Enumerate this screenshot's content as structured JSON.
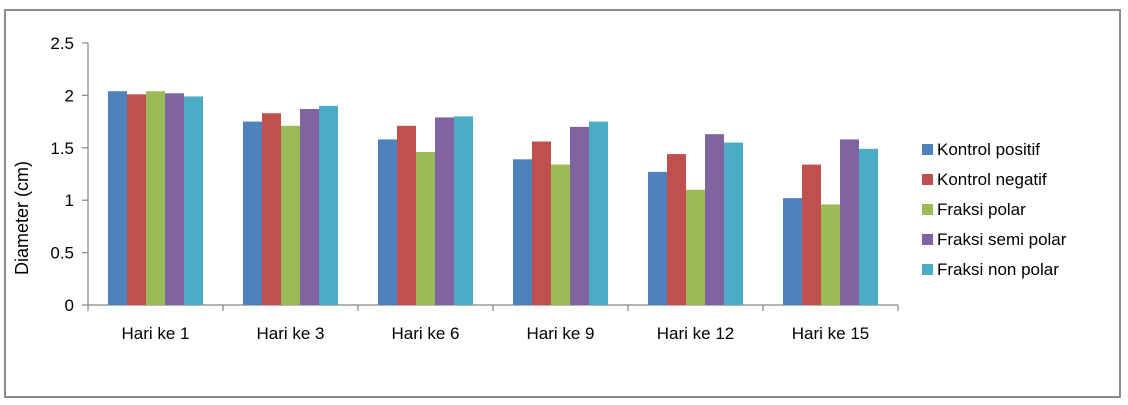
{
  "chart_data": {
    "type": "bar",
    "title": "",
    "xlabel": "",
    "ylabel": "Diameter (cm)",
    "ylim": [
      0,
      2.5
    ],
    "yticks": [
      "0",
      "0.5",
      "1",
      "1.5",
      "2",
      "2.5"
    ],
    "grid": false,
    "legend_position": "right",
    "categories": [
      "Hari ke 1",
      "Hari ke 3",
      "Hari ke 6",
      "Hari ke 9",
      "Hari ke 12",
      "Hari ke 15"
    ],
    "series": [
      {
        "name": "Kontrol positif",
        "color": "#4f81bd",
        "values": [
          2.04,
          1.75,
          1.58,
          1.39,
          1.27,
          1.02
        ]
      },
      {
        "name": "Kontrol negatif",
        "color": "#c0504d",
        "values": [
          2.01,
          1.83,
          1.71,
          1.56,
          1.44,
          1.34
        ]
      },
      {
        "name": "Fraksi polar",
        "color": "#9bbb59",
        "values": [
          2.04,
          1.71,
          1.46,
          1.34,
          1.1,
          0.96
        ]
      },
      {
        "name": "Fraksi semi polar",
        "color": "#8064a2",
        "values": [
          2.02,
          1.87,
          1.79,
          1.7,
          1.63,
          1.58
        ]
      },
      {
        "name": "Fraksi non polar",
        "color": "#4bacc6",
        "values": [
          1.99,
          1.9,
          1.8,
          1.75,
          1.55,
          1.49
        ]
      }
    ]
  }
}
